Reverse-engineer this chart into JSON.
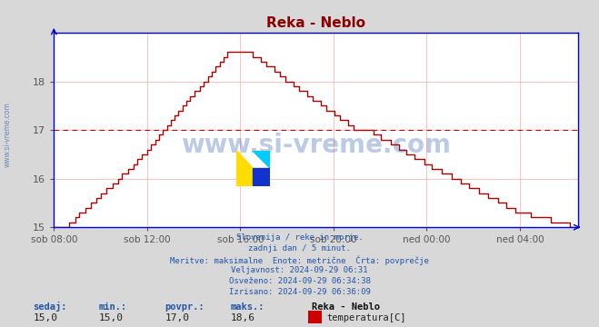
{
  "title": "Reka - Neblo",
  "title_color": "#8b0000",
  "bg_color": "#d8d8d8",
  "plot_bg_color": "#ffffff",
  "line_color": "#aa0000",
  "avg_line_color": "#cc0000",
  "avg_value": 17.0,
  "y_min": 15.0,
  "y_max": 19.0,
  "y_ticks": [
    15,
    16,
    17,
    18
  ],
  "grid_color": "#ffaaaa",
  "axis_color": "#0000cc",
  "tick_color": "#555555",
  "x_tick_labels": [
    "sob 08:00",
    "sob 12:00",
    "sob 16:00",
    "sob 20:00",
    "ned 00:00",
    "ned 04:00"
  ],
  "x_tick_positions": [
    8,
    12,
    16,
    20,
    24,
    28
  ],
  "watermark": "www.si-vreme.com",
  "watermark_color": "#2255aa",
  "left_label": "www.si-vreme.com",
  "info_lines": [
    "Slovenija / reke in morje.",
    "zadnji dan / 5 minut.",
    "Meritve: maksimalne  Enote: metrične  Črta: povprečje",
    "Veljavnost: 2024-09-29 06:31",
    "Osveženo: 2024-09-29 06:34:38",
    "Izrisano: 2024-09-29 06:36:09"
  ],
  "bottom_labels": [
    "sedaj:",
    "min.:",
    "povpr.:",
    "maks.:"
  ],
  "bottom_values": [
    "15,0",
    "15,0",
    "17,0",
    "18,6"
  ],
  "station_name": "Reka - Neblo",
  "legend_label": "temperatura[C]",
  "legend_color": "#cc0000"
}
